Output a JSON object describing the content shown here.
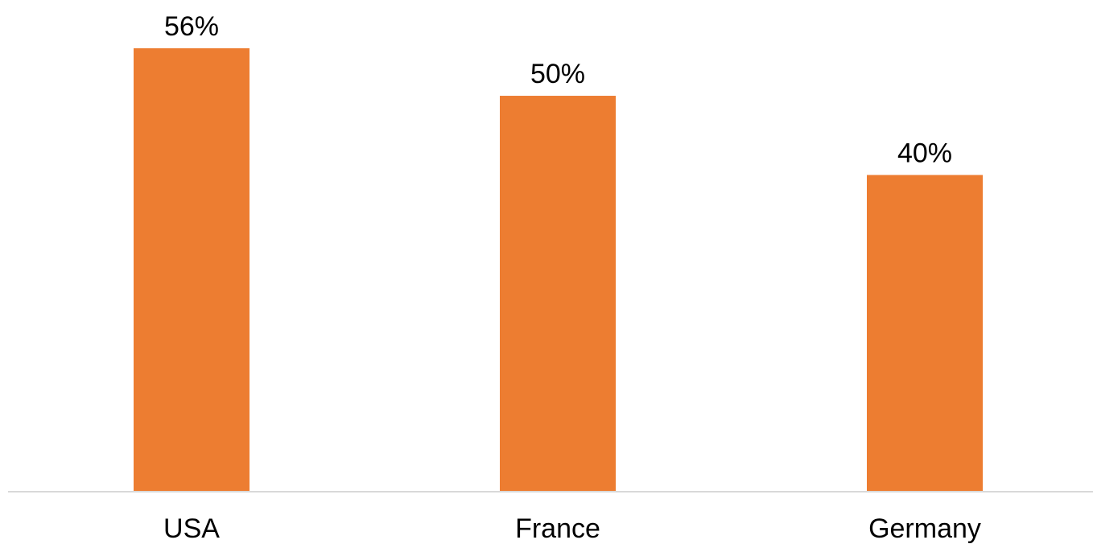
{
  "chart_data": {
    "type": "bar",
    "title": "",
    "xlabel": "",
    "ylabel": "",
    "categories": [
      "USA",
      "France",
      "Germany"
    ],
    "values": [
      56,
      50,
      40
    ],
    "data_labels": [
      "56%",
      "50%",
      "40%"
    ],
    "ylim": [
      0,
      56
    ],
    "grid": false,
    "legend": "none",
    "colors": {
      "bar": "#ED7D31",
      "axis": "#D9D9D9",
      "text": "#000000"
    }
  }
}
